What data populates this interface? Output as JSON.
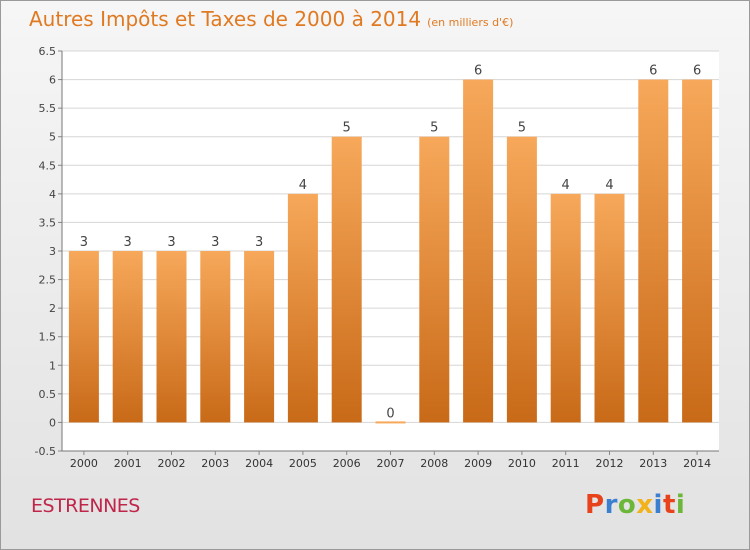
{
  "header": {
    "title": "Autres Impôts et Taxes de 2000 à 2014",
    "subtitle": "(en milliers d'€)"
  },
  "footer": {
    "commune": "ESTRENNES",
    "logo_text": "Proxiti",
    "logo_colors": [
      "#e8421c",
      "#3a7fd0",
      "#6cb63a",
      "#f2b21a",
      "#3a7fd0",
      "#e8421c",
      "#6cb63a"
    ]
  },
  "colors": {
    "bar_light": "#f7a85a",
    "bar_dark": "#c86a18",
    "title": "#e07a22",
    "commune": "#c0264a"
  },
  "chart_data": {
    "type": "bar",
    "categories": [
      "2000",
      "2001",
      "2002",
      "2003",
      "2004",
      "2005",
      "2006",
      "2007",
      "2008",
      "2009",
      "2010",
      "2011",
      "2012",
      "2013",
      "2014"
    ],
    "values": [
      3,
      3,
      3,
      3,
      3,
      4,
      5,
      0,
      5,
      6,
      5,
      4,
      4,
      6,
      6
    ],
    "y_ticks": [
      "-0.5",
      "0",
      "0.5",
      "1",
      "1.5",
      "2",
      "2.5",
      "3",
      "3.5",
      "4",
      "4.5",
      "5",
      "5.5",
      "6",
      "6.5"
    ],
    "ylim": [
      -0.5,
      6.5
    ],
    "grid": true,
    "title": "Autres Impôts et Taxes de 2000 à 2014",
    "xlabel": "",
    "ylabel": ""
  }
}
